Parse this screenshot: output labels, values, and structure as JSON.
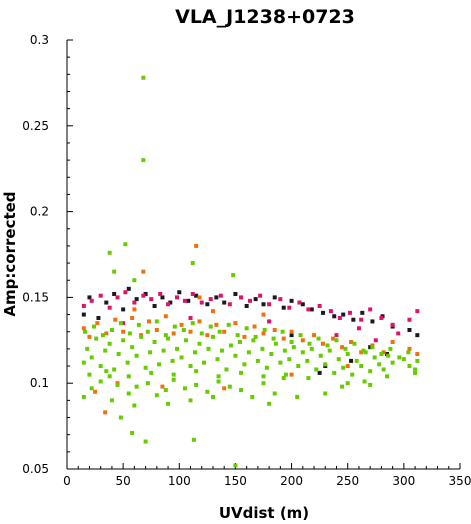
{
  "chart_data": {
    "type": "scatter",
    "title": "VLA_J1238+0723",
    "xlabel": "UVdist (m)",
    "ylabel": "Amp:corrected",
    "xlim": [
      0,
      350
    ],
    "ylim": [
      0.05,
      0.3
    ],
    "x_ticks": [
      "0",
      "50",
      "100",
      "150",
      "200",
      "250",
      "300",
      "350"
    ],
    "y_ticks": [
      "0.05",
      "0.1",
      "0.15",
      "0.2",
      "0.25",
      "0.3"
    ],
    "grid": false,
    "legend": "none",
    "series": [
      {
        "color": "#1a1a1a",
        "points": [
          [
            15,
            0.14
          ],
          [
            20,
            0.15
          ],
          [
            28,
            0.138
          ],
          [
            35,
            0.147
          ],
          [
            42,
            0.152
          ],
          [
            50,
            0.143
          ],
          [
            55,
            0.155
          ],
          [
            62,
            0.149
          ],
          [
            70,
            0.152
          ],
          [
            78,
            0.145
          ],
          [
            85,
            0.15
          ],
          [
            92,
            0.147
          ],
          [
            100,
            0.153
          ],
          [
            108,
            0.148
          ],
          [
            115,
            0.151
          ],
          [
            125,
            0.146
          ],
          [
            133,
            0.15
          ],
          [
            140,
            0.147
          ],
          [
            150,
            0.152
          ],
          [
            160,
            0.145
          ],
          [
            168,
            0.149
          ],
          [
            175,
            0.146
          ],
          [
            185,
            0.15
          ],
          [
            193,
            0.144
          ],
          [
            200,
            0.148
          ],
          [
            210,
            0.146
          ],
          [
            218,
            0.143
          ],
          [
            228,
            0.141
          ],
          [
            238,
            0.139
          ],
          [
            246,
            0.14
          ],
          [
            255,
            0.137
          ],
          [
            263,
            0.141
          ],
          [
            272,
            0.136
          ],
          [
            281,
            0.139
          ],
          [
            290,
            0.133
          ],
          [
            305,
            0.131
          ],
          [
            312,
            0.128
          ],
          [
            230,
            0.11
          ],
          [
            253,
            0.113
          ],
          [
            270,
            0.121
          ],
          [
            285,
            0.117
          ],
          [
            225,
            0.106
          ],
          [
            200,
            0.128
          ]
        ]
      },
      {
        "color": "#e0136b",
        "points": [
          [
            15,
            0.145
          ],
          [
            22,
            0.148
          ],
          [
            30,
            0.151
          ],
          [
            38,
            0.144
          ],
          [
            45,
            0.15
          ],
          [
            52,
            0.153
          ],
          [
            60,
            0.147
          ],
          [
            68,
            0.151
          ],
          [
            75,
            0.149
          ],
          [
            83,
            0.152
          ],
          [
            90,
            0.146
          ],
          [
            98,
            0.15
          ],
          [
            105,
            0.148
          ],
          [
            112,
            0.152
          ],
          [
            120,
            0.147
          ],
          [
            128,
            0.149
          ],
          [
            137,
            0.151
          ],
          [
            145,
            0.146
          ],
          [
            155,
            0.15
          ],
          [
            163,
            0.148
          ],
          [
            172,
            0.151
          ],
          [
            180,
            0.146
          ],
          [
            190,
            0.149
          ],
          [
            198,
            0.144
          ],
          [
            207,
            0.147
          ],
          [
            215,
            0.143
          ],
          [
            225,
            0.145
          ],
          [
            235,
            0.142
          ],
          [
            243,
            0.138
          ],
          [
            252,
            0.141
          ],
          [
            262,
            0.137
          ],
          [
            270,
            0.143
          ],
          [
            280,
            0.138
          ],
          [
            290,
            0.134
          ],
          [
            305,
            0.137
          ],
          [
            312,
            0.142
          ],
          [
            240,
            0.128
          ],
          [
            260,
            0.132
          ],
          [
            275,
            0.125
          ],
          [
            295,
            0.129
          ],
          [
            50,
            0.135
          ],
          [
            110,
            0.138
          ],
          [
            180,
            0.136
          ]
        ]
      },
      {
        "color": "#f07010",
        "points": [
          [
            15,
            0.132
          ],
          [
            20,
            0.127
          ],
          [
            27,
            0.135
          ],
          [
            35,
            0.129
          ],
          [
            43,
            0.137
          ],
          [
            50,
            0.13
          ],
          [
            58,
            0.138
          ],
          [
            66,
            0.128
          ],
          [
            73,
            0.136
          ],
          [
            80,
            0.131
          ],
          [
            88,
            0.139
          ],
          [
            95,
            0.129
          ],
          [
            102,
            0.134
          ],
          [
            110,
            0.13
          ],
          [
            118,
            0.136
          ],
          [
            125,
            0.128
          ],
          [
            133,
            0.134
          ],
          [
            140,
            0.13
          ],
          [
            150,
            0.135
          ],
          [
            158,
            0.127
          ],
          [
            167,
            0.133
          ],
          [
            175,
            0.129
          ],
          [
            185,
            0.131
          ],
          [
            193,
            0.126
          ],
          [
            200,
            0.13
          ],
          [
            210,
            0.125
          ],
          [
            220,
            0.128
          ],
          [
            228,
            0.123
          ],
          [
            237,
            0.126
          ],
          [
            245,
            0.121
          ],
          [
            253,
            0.124
          ],
          [
            262,
            0.118
          ],
          [
            272,
            0.122
          ],
          [
            282,
            0.118
          ],
          [
            290,
            0.124
          ],
          [
            305,
            0.12
          ],
          [
            312,
            0.117
          ],
          [
            68,
            0.165
          ],
          [
            115,
            0.18
          ],
          [
            118,
            0.15
          ],
          [
            25,
            0.095
          ],
          [
            34,
            0.083
          ],
          [
            45,
            0.1
          ],
          [
            85,
            0.098
          ],
          [
            140,
            0.097
          ],
          [
            200,
            0.105
          ],
          [
            250,
            0.11
          ],
          [
            60,
            0.143
          ],
          [
            130,
            0.142
          ],
          [
            175,
            0.14
          ]
        ]
      },
      {
        "color": "#66cc00",
        "points": [
          [
            68,
            0.278
          ],
          [
            68,
            0.23
          ],
          [
            52,
            0.181
          ],
          [
            38,
            0.176
          ],
          [
            42,
            0.165
          ],
          [
            60,
            0.16
          ],
          [
            112,
            0.17
          ],
          [
            148,
            0.163
          ],
          [
            70,
            0.066
          ],
          [
            58,
            0.071
          ],
          [
            113,
            0.067
          ],
          [
            150,
            0.052
          ],
          [
            48,
            0.08
          ],
          [
            15,
            0.092
          ],
          [
            22,
            0.097
          ],
          [
            30,
            0.101
          ],
          [
            38,
            0.104
          ],
          [
            45,
            0.099
          ],
          [
            55,
            0.094
          ],
          [
            62,
            0.098
          ],
          [
            72,
            0.1
          ],
          [
            80,
            0.093
          ],
          [
            88,
            0.096
          ],
          [
            95,
            0.102
          ],
          [
            105,
            0.097
          ],
          [
            115,
            0.099
          ],
          [
            125,
            0.095
          ],
          [
            135,
            0.101
          ],
          [
            145,
            0.098
          ],
          [
            155,
            0.096
          ],
          [
            165,
            0.092
          ],
          [
            175,
            0.1
          ],
          [
            185,
            0.094
          ],
          [
            193,
            0.103
          ],
          [
            15,
            0.112
          ],
          [
            18,
            0.12
          ],
          [
            22,
            0.115
          ],
          [
            26,
            0.126
          ],
          [
            30,
            0.11
          ],
          [
            34,
            0.119
          ],
          [
            38,
            0.123
          ],
          [
            42,
            0.108
          ],
          [
            46,
            0.117
          ],
          [
            50,
            0.125
          ],
          [
            54,
            0.112
          ],
          [
            58,
            0.121
          ],
          [
            62,
            0.116
          ],
          [
            66,
            0.127
          ],
          [
            70,
            0.109
          ],
          [
            74,
            0.118
          ],
          [
            78,
            0.124
          ],
          [
            82,
            0.111
          ],
          [
            86,
            0.119
          ],
          [
            90,
            0.126
          ],
          [
            94,
            0.113
          ],
          [
            98,
            0.12
          ],
          [
            102,
            0.115
          ],
          [
            106,
            0.125
          ],
          [
            110,
            0.11
          ],
          [
            114,
            0.118
          ],
          [
            118,
            0.123
          ],
          [
            122,
            0.112
          ],
          [
            126,
            0.12
          ],
          [
            130,
            0.127
          ],
          [
            134,
            0.114
          ],
          [
            138,
            0.119
          ],
          [
            142,
            0.108
          ],
          [
            146,
            0.122
          ],
          [
            150,
            0.116
          ],
          [
            154,
            0.124
          ],
          [
            158,
            0.111
          ],
          [
            162,
            0.118
          ],
          [
            166,
            0.125
          ],
          [
            170,
            0.113
          ],
          [
            174,
            0.12
          ],
          [
            178,
            0.109
          ],
          [
            182,
            0.117
          ],
          [
            186,
            0.123
          ],
          [
            190,
            0.112
          ],
          [
            194,
            0.119
          ],
          [
            198,
            0.114
          ],
          [
            202,
            0.121
          ],
          [
            206,
            0.11
          ],
          [
            210,
            0.118
          ],
          [
            214,
            0.113
          ],
          [
            218,
            0.12
          ],
          [
            222,
            0.108
          ],
          [
            226,
            0.116
          ],
          [
            230,
            0.111
          ],
          [
            234,
            0.119
          ],
          [
            238,
            0.106
          ],
          [
            242,
            0.114
          ],
          [
            246,
            0.109
          ],
          [
            250,
            0.117
          ],
          [
            254,
            0.105
          ],
          [
            258,
            0.113
          ],
          [
            262,
            0.11
          ],
          [
            266,
            0.118
          ],
          [
            270,
            0.107
          ],
          [
            274,
            0.115
          ],
          [
            278,
            0.111
          ],
          [
            282,
            0.108
          ],
          [
            286,
            0.116
          ],
          [
            290,
            0.112
          ],
          [
            300,
            0.114
          ],
          [
            305,
            0.11
          ],
          [
            310,
            0.108
          ],
          [
            312,
            0.113
          ],
          [
            16,
            0.13
          ],
          [
            24,
            0.133
          ],
          [
            32,
            0.128
          ],
          [
            40,
            0.131
          ],
          [
            48,
            0.135
          ],
          [
            56,
            0.129
          ],
          [
            64,
            0.134
          ],
          [
            72,
            0.13
          ],
          [
            80,
            0.136
          ],
          [
            88,
            0.128
          ],
          [
            96,
            0.133
          ],
          [
            104,
            0.131
          ],
          [
            112,
            0.135
          ],
          [
            120,
            0.129
          ],
          [
            128,
            0.133
          ],
          [
            136,
            0.13
          ],
          [
            144,
            0.134
          ],
          [
            152,
            0.128
          ],
          [
            160,
            0.132
          ],
          [
            168,
            0.127
          ],
          [
            176,
            0.131
          ],
          [
            184,
            0.126
          ],
          [
            192,
            0.13
          ],
          [
            200,
            0.124
          ],
          [
            208,
            0.128
          ],
          [
            216,
            0.123
          ],
          [
            224,
            0.126
          ],
          [
            232,
            0.122
          ],
          [
            240,
            0.125
          ],
          [
            248,
            0.12
          ],
          [
            256,
            0.123
          ],
          [
            264,
            0.119
          ],
          [
            272,
            0.121
          ],
          [
            280,
            0.117
          ],
          [
            288,
            0.12
          ],
          [
            296,
            0.115
          ],
          [
            304,
            0.118
          ],
          [
            20,
            0.105
          ],
          [
            35,
            0.107
          ],
          [
            55,
            0.104
          ],
          [
            75,
            0.106
          ],
          [
            95,
            0.105
          ],
          [
            115,
            0.107
          ],
          [
            135,
            0.104
          ],
          [
            155,
            0.106
          ],
          [
            175,
            0.104
          ],
          [
            195,
            0.105
          ],
          [
            215,
            0.103
          ],
          [
            245,
            0.098
          ],
          [
            265,
            0.101
          ],
          [
            285,
            0.104
          ],
          [
            310,
            0.106
          ],
          [
            230,
            0.094
          ],
          [
            250,
            0.1
          ],
          [
            270,
            0.099
          ],
          [
            180,
            0.088
          ],
          [
            205,
            0.092
          ],
          [
            110,
            0.09
          ],
          [
            130,
            0.092
          ],
          [
            90,
            0.088
          ],
          [
            60,
            0.087
          ],
          [
            40,
            0.09
          ]
        ]
      }
    ]
  }
}
